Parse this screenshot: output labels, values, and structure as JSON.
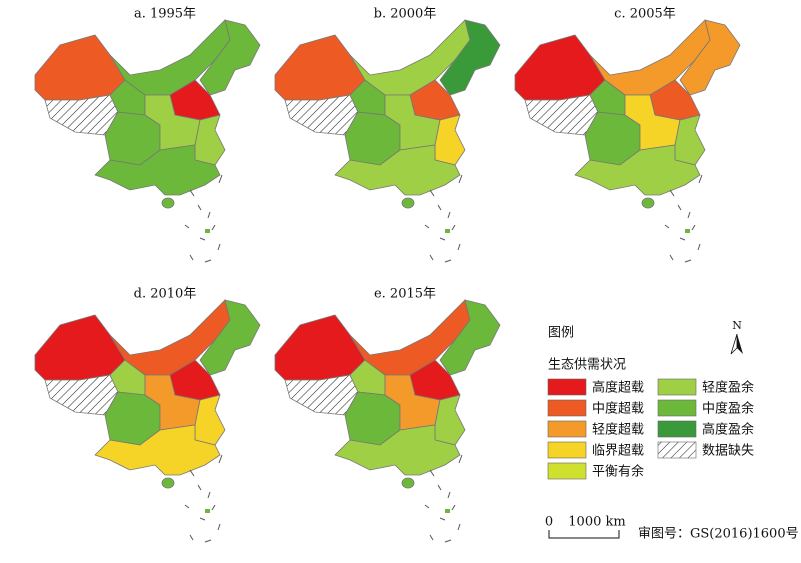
{
  "panels": [
    {
      "title": "a. 1995年"
    },
    {
      "title": "b. 2000年"
    },
    {
      "title": "c. 2005年"
    },
    {
      "title": "d. 2010年"
    },
    {
      "title": "e. 2015年"
    }
  ],
  "legend": {
    "title": "图例",
    "subtitle": "生态供需状况",
    "items": [
      {
        "label": "高度超载",
        "color": "#e41a1c"
      },
      {
        "label": "中度超载",
        "color": "#ee5a24"
      },
      {
        "label": "轻度超载",
        "color": "#f39a2b"
      },
      {
        "label": "临界超载",
        "color": "#f5d327"
      },
      {
        "label": "平衡有余",
        "color": "#cfe02f"
      },
      {
        "label": "轻度盈余",
        "color": "#9fcf45"
      },
      {
        "label": "中度盈余",
        "color": "#6cb83a"
      },
      {
        "label": "高度盈余",
        "color": "#3a9a3a"
      },
      {
        "label": "数据缺失",
        "color": "#ffffff",
        "pattern": "hatch"
      }
    ]
  },
  "north": "N",
  "scale_bar": {
    "start": "0",
    "end": "1000 km"
  },
  "approval": "审图号：GS(2016)1600号"
}
